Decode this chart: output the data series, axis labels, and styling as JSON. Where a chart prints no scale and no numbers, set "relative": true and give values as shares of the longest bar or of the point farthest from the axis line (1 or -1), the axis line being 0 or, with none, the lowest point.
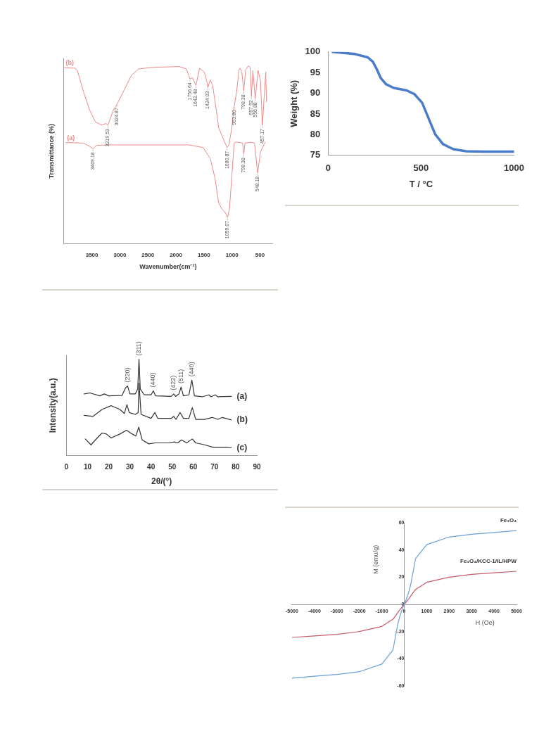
{
  "chart_data": [
    {
      "type": "line",
      "xlabel": "Wavenumber(cm⁻¹)",
      "ylabel": "Transmittance (%)",
      "relative": true,
      "xlim": [
        4000,
        280
      ],
      "xticks": [
        3500,
        3000,
        2500,
        2000,
        1500,
        1000,
        500
      ],
      "series": [
        {
          "name": "(b)",
          "color": "#ee8a8a",
          "x": [
            3991,
            3799,
            3756,
            3649,
            3543,
            3436,
            3329,
            3244,
            3214,
            3116,
            3052,
            2924,
            2796,
            2668,
            2412,
            1942,
            1814,
            1771,
            1750,
            1707,
            1643,
            1579,
            1494,
            1451,
            1430,
            1387,
            1345,
            1281,
            1238,
            1174,
            1089,
            1054,
            1003,
            961,
            918,
            875,
            854,
            824,
            790,
            756,
            704,
            675,
            653,
            627,
            585,
            534,
            491,
            457,
            427,
            397,
            384
          ],
          "values": [
            0.988,
            0.985,
            0.969,
            0.851,
            0.752,
            0.683,
            0.667,
            0.675,
            0.665,
            0.752,
            0.783,
            0.863,
            0.944,
            0.981,
            0.99,
            0.994,
            0.981,
            0.944,
            0.925,
            0.932,
            0.888,
            0.985,
            0.963,
            0.913,
            0.876,
            0.919,
            0.888,
            0.752,
            0.652,
            0.603,
            0.54,
            0.553,
            0.652,
            0.77,
            0.851,
            0.975,
            0.985,
            0.963,
            0.857,
            0.975,
            1.0,
            0.988,
            0.826,
            0.973,
            0.814,
            0.973,
            0.913,
            0.665,
            0.814,
            0.963,
            0.795
          ]
        },
        {
          "name": "(a)",
          "color": "#ee8a8a",
          "x": [
            3969,
            3649,
            3543,
            3479,
            3415,
            3052,
            2198,
            1771,
            1515,
            1387,
            1302,
            1238,
            1174,
            1131,
            1080,
            1046,
            1003,
            961,
            918,
            854,
            811,
            790,
            768,
            662,
            598,
            542,
            491,
            406
          ],
          "values": [
            0.568,
            0.565,
            0.547,
            0.534,
            0.553,
            0.555,
            0.555,
            0.555,
            0.54,
            0.478,
            0.366,
            0.23,
            0.193,
            0.18,
            0.149,
            0.193,
            0.379,
            0.565,
            0.571,
            0.568,
            0.565,
            0.503,
            0.565,
            0.57,
            0.565,
            0.398,
            0.516,
            0.571
          ]
        }
      ],
      "annotations": [
        {
          "text": "3219.53",
          "x": 3214,
          "y": 0.665
        },
        {
          "text": "3024.87",
          "x": 3052,
          "y": 0.783
        },
        {
          "text": "1756.64",
          "x": 1750,
          "y": 0.925
        },
        {
          "text": "1642.48",
          "x": 1643,
          "y": 0.888
        },
        {
          "text": "1424.03",
          "x": 1430,
          "y": 0.876
        },
        {
          "text": "1080.87",
          "x": 1089,
          "y": 0.54
        },
        {
          "text": "963.80",
          "x": 961,
          "y": 0.77
        },
        {
          "text": "798.38",
          "x": 790,
          "y": 0.857
        },
        {
          "text": "657.92",
          "x": 653,
          "y": 0.826
        },
        {
          "text": "556.88",
          "x": 585,
          "y": 0.814
        },
        {
          "text": "457.17",
          "x": 457,
          "y": 0.665
        },
        {
          "text": "3409.18",
          "x": 3479,
          "y": 0.534
        },
        {
          "text": "1059.07",
          "x": 1080,
          "y": 0.149
        },
        {
          "text": "798.38",
          "x": 790,
          "y": 0.503
        },
        {
          "text": "548.18",
          "x": 542,
          "y": 0.398
        }
      ]
    },
    {
      "type": "line",
      "xlabel": "T / °C",
      "ylabel": "Weight (%)",
      "xlim": [
        0,
        1000
      ],
      "xticks": [
        0,
        500,
        1000
      ],
      "ylim": [
        75,
        100
      ],
      "yticks": [
        75,
        80,
        85,
        90,
        95,
        100
      ],
      "x": [
        25,
        143,
        213,
        241,
        262,
        283,
        311,
        353,
        422,
        464,
        506,
        548,
        576,
        618,
        673,
        743,
        841,
        1000
      ],
      "series": [
        {
          "color": "#4a7cc9",
          "values": [
            100,
            99.5,
            98.7,
            97.6,
            95.8,
            93.7,
            92.2,
            91.3,
            90.7,
            89.8,
            87.7,
            83.1,
            80.1,
            77.7,
            76.5,
            76.0,
            75.9,
            75.9
          ]
        }
      ]
    },
    {
      "type": "line",
      "xlabel": "2θ/(°)",
      "ylabel": "Intensity(a.u.)",
      "relative": true,
      "xlim": [
        0,
        90
      ],
      "xticks": [
        0,
        10,
        20,
        30,
        40,
        50,
        60,
        70,
        80,
        90
      ],
      "series": [
        {
          "name": "(a)",
          "color": "#333333",
          "x": [
            8.4,
            11.1,
            15.8,
            17.9,
            20,
            26.3,
            27.9,
            28.9,
            30,
            32.6,
            33.7,
            34.3,
            34.9,
            36.8,
            40,
            41.1,
            42.1,
            49.5,
            50.7,
            51.6,
            53.2,
            54.2,
            55.3,
            57.9,
            59.3,
            60.5,
            64.2,
            67.4,
            68.4,
            70.3,
            71.6,
            77.9
          ],
          "values": [
            0.64,
            0.65,
            0.62,
            0.64,
            0.62,
            0.624,
            0.701,
            0.722,
            0.64,
            0.64,
            0.691,
            1.0,
            0.691,
            0.63,
            0.63,
            0.671,
            0.62,
            0.614,
            0.64,
            0.614,
            0.64,
            0.711,
            0.62,
            0.63,
            0.783,
            0.62,
            0.61,
            0.63,
            0.61,
            0.63,
            0.61,
            0.614
          ]
        },
        {
          "name": "(b)",
          "color": "#333333",
          "x": [
            8.4,
            12.6,
            16.8,
            21.1,
            25.3,
            27.4,
            28.6,
            29.7,
            32.6,
            33.9,
            34.3,
            35.3,
            40,
            41.8,
            43.2,
            49.5,
            50.7,
            51.8,
            53.7,
            55.3,
            57.9,
            59.5,
            61.1,
            65.3,
            68.9,
            71.6,
            73.7,
            77.9
          ],
          "values": [
            0.417,
            0.407,
            0.478,
            0.518,
            0.478,
            0.437,
            0.528,
            0.447,
            0.427,
            0.447,
            0.752,
            0.427,
            0.386,
            0.447,
            0.386,
            0.386,
            0.407,
            0.376,
            0.447,
            0.386,
            0.386,
            0.498,
            0.376,
            0.376,
            0.396,
            0.376,
            0.396,
            0.37
          ]
        },
        {
          "name": "(c)",
          "color": "#333333",
          "x": [
            8.9,
            11.6,
            13.7,
            16.8,
            18.9,
            21.1,
            25.3,
            28.4,
            31.1,
            32.8,
            34.2,
            35.8,
            38.9,
            42.1,
            48.4,
            51.1,
            52.6,
            54.4,
            56.8,
            59.5,
            61.1,
            65.3,
            69.5,
            75.8,
            77.9
          ],
          "values": [
            0.173,
            0.112,
            0.163,
            0.234,
            0.224,
            0.183,
            0.224,
            0.264,
            0.224,
            0.203,
            0.295,
            0.163,
            0.122,
            0.132,
            0.132,
            0.142,
            0.132,
            0.163,
            0.132,
            0.173,
            0.132,
            0.112,
            0.085,
            0.085,
            0.081
          ]
        }
      ],
      "annotations": [
        {
          "text": "(220)",
          "x": 28.9,
          "y": 0.722
        },
        {
          "text": "(311)",
          "x": 34.3,
          "y": 1.0
        },
        {
          "text": "(440)",
          "x": 41.1,
          "y": 0.671
        },
        {
          "text": "(422)",
          "x": 50.7,
          "y": 0.64
        },
        {
          "text": "(511)",
          "x": 54.2,
          "y": 0.711
        },
        {
          "text": "(440)",
          "x": 59.3,
          "y": 0.783
        }
      ]
    },
    {
      "type": "line",
      "xlabel": "H (Oe)",
      "ylabel": "M (emu/g)",
      "xlim": [
        -5000,
        5000
      ],
      "xticks": [
        -5000,
        -4000,
        -3000,
        -2000,
        -1000,
        0,
        1000,
        2000,
        3000,
        4000,
        5000
      ],
      "ylim": [
        -60,
        60
      ],
      "yticks": [
        -60,
        -40,
        -20,
        0,
        20,
        40,
        60
      ],
      "x": [
        -5000,
        -4000,
        -3000,
        -2000,
        -1000,
        -500,
        -300,
        -200,
        -100,
        0,
        100,
        200,
        300,
        500,
        1000,
        2000,
        3000,
        4000,
        5000
      ],
      "series": [
        {
          "name": "Fe₃O₄",
          "color": "#6a9fd8",
          "values": [
            -54.2,
            -52.8,
            -51.5,
            -49.5,
            -43.9,
            -33.5,
            -15.4,
            -9,
            -4,
            0,
            4,
            9,
            15.4,
            33.5,
            43.9,
            49.5,
            51.5,
            52.8,
            54.2
          ]
        },
        {
          "name": "Fe₃O₄/KCC-1/IL/HPW",
          "color": "#c8596a",
          "values": [
            -24.3,
            -23.2,
            -22,
            -20,
            -16.2,
            -10.9,
            -6.4,
            -4,
            -2,
            0,
            2,
            4,
            6.4,
            10.9,
            16.2,
            20,
            22,
            23.2,
            24.3
          ]
        }
      ]
    }
  ]
}
